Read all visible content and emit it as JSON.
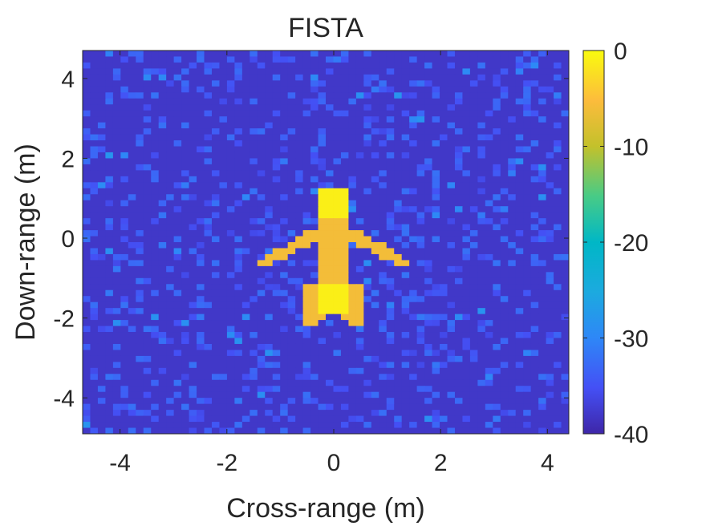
{
  "chart_data": {
    "type": "heatmap",
    "title": "FISTA",
    "xlabel": "Cross-range (m)",
    "ylabel": "Down-range (m)",
    "xlim": [
      -4.7,
      4.4
    ],
    "ylim": [
      -4.9,
      4.7
    ],
    "xticks": [
      -4,
      -2,
      0,
      2,
      4
    ],
    "yticks": [
      4,
      2,
      0,
      -2,
      -4
    ],
    "xtick_labels": [
      "-4",
      "-2",
      "0",
      "2",
      "4"
    ],
    "ytick_labels": [
      "4",
      "2",
      "0",
      "-2",
      "-4"
    ],
    "grid": false,
    "colorbar": {
      "limits": [
        -40,
        0
      ],
      "ticks": [
        0,
        -10,
        -20,
        -30,
        -40
      ],
      "tick_labels": [
        "0",
        "-10",
        "-20",
        "-30",
        "-40"
      ],
      "colormap": "parula"
    },
    "grid_size": {
      "cols": 64,
      "rows": 64
    },
    "background_level_db": -38,
    "noise_level_range_db": [
      -36,
      -28
    ],
    "target_regions_db": [
      {
        "name": "fuselage",
        "polygon": [
          [
            -0.25,
            1.3
          ],
          [
            0.25,
            1.3
          ],
          [
            0.25,
            -1.4
          ],
          [
            -0.25,
            -1.4
          ]
        ],
        "value_db": -6
      },
      {
        "name": "nose",
        "polygon": [
          [
            -0.3,
            1.3
          ],
          [
            0.3,
            1.3
          ],
          [
            0.3,
            0.55
          ],
          [
            -0.3,
            0.55
          ]
        ],
        "value_db": -1
      },
      {
        "name": "left-wing",
        "polygon": [
          [
            -0.25,
            0.9
          ],
          [
            -0.25,
            0.35
          ],
          [
            -1.4,
            -0.55
          ],
          [
            -1.4,
            -0.75
          ],
          [
            -1.3,
            -0.75
          ],
          [
            -0.25,
            -0.05
          ]
        ],
        "value_db": -6
      },
      {
        "name": "right-wing",
        "polygon": [
          [
            0.25,
            0.9
          ],
          [
            0.25,
            0.35
          ],
          [
            1.4,
            -0.55
          ],
          [
            1.4,
            -0.75
          ],
          [
            1.3,
            -0.75
          ],
          [
            0.25,
            -0.05
          ]
        ],
        "value_db": -6
      },
      {
        "name": "tail",
        "polygon": [
          [
            -0.55,
            -1.2
          ],
          [
            0.55,
            -1.2
          ],
          [
            0.55,
            -2.2
          ],
          [
            0.35,
            -2.2
          ],
          [
            0.0,
            -1.85
          ],
          [
            -0.35,
            -2.2
          ],
          [
            -0.55,
            -2.2
          ]
        ],
        "value_db": -6
      },
      {
        "name": "tail-core",
        "polygon": [
          [
            -0.3,
            -1.2
          ],
          [
            0.3,
            -1.2
          ],
          [
            0.3,
            -1.85
          ],
          [
            -0.3,
            -1.85
          ]
        ],
        "value_db": -1
      }
    ],
    "colors": {
      "axis": "#262626",
      "frame": "#262626",
      "background": "#ffffff"
    }
  }
}
